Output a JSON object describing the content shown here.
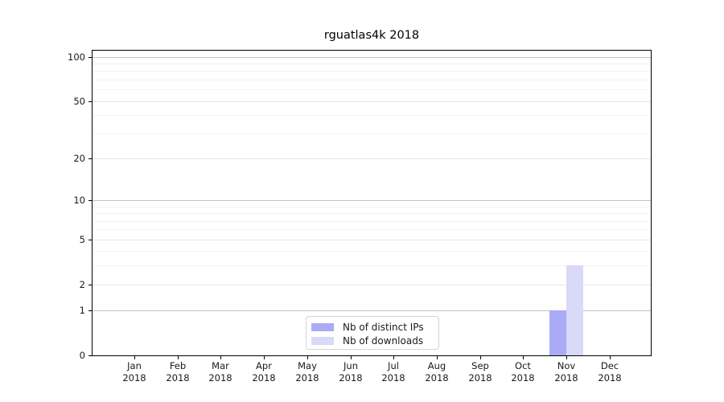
{
  "chart_data": {
    "type": "bar",
    "title": "rguatlas4k 2018",
    "x_tick_months": [
      "Jan",
      "Feb",
      "Mar",
      "Apr",
      "May",
      "Jun",
      "Jul",
      "Aug",
      "Sep",
      "Oct",
      "Nov",
      "Dec"
    ],
    "x_tick_year": "2018",
    "categories": [
      "Jan 2018",
      "Feb 2018",
      "Mar 2018",
      "Apr 2018",
      "May 2018",
      "Jun 2018",
      "Jul 2018",
      "Aug 2018",
      "Sep 2018",
      "Oct 2018",
      "Nov 2018",
      "Dec 2018"
    ],
    "series": [
      {
        "name": "Nb of distinct IPs",
        "color": "#aaaaf7",
        "values": [
          0,
          0,
          0,
          0,
          0,
          0,
          0,
          0,
          0,
          0,
          1,
          0
        ]
      },
      {
        "name": "Nb of downloads",
        "color": "#d9d9f8",
        "values": [
          0,
          0,
          0,
          0,
          0,
          0,
          0,
          0,
          0,
          0,
          3,
          0
        ]
      }
    ],
    "y_scale": "log10(1+y)",
    "ylim": [
      0,
      110
    ],
    "y_ticks": [
      0,
      1,
      2,
      5,
      10,
      20,
      50,
      100
    ],
    "grid": "horizontal",
    "gridline_levels": {
      "major": [
        1,
        10,
        100
      ],
      "labeled_minor": [
        2,
        5,
        20,
        50
      ],
      "minor": [
        3,
        4,
        6,
        7,
        8,
        9,
        30,
        40,
        60,
        70,
        80,
        90
      ]
    },
    "legend": {
      "position": "lower center inside",
      "entries": [
        "Nb of distinct IPs",
        "Nb of downloads"
      ]
    }
  },
  "colors": {
    "spine": "#000000",
    "grid_major": "#c2c2c2",
    "grid_labeled": "#e7e7e7",
    "grid_minor": "#f2f2f2",
    "text": "#1a1a1a",
    "legend_border": "#d4d4d4",
    "background": "#ffffff"
  }
}
